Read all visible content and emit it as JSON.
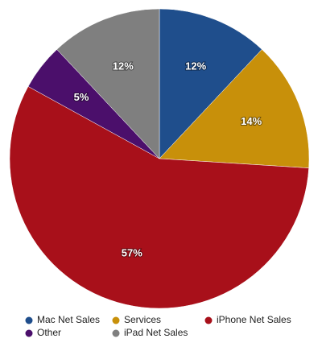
{
  "chart_data": {
    "type": "pie",
    "categories": [
      "Mac Net Sales",
      "Services",
      "iPhone Net Sales",
      "Other",
      "iPad Net Sales"
    ],
    "values": [
      12,
      14,
      57,
      5,
      12
    ],
    "value_labels": [
      "12%",
      "14%",
      "57%",
      "5%",
      "12%"
    ],
    "colors": [
      "#1f4e8c",
      "#c8900a",
      "#a8101a",
      "#4b0f6b",
      "#7f7f7f"
    ],
    "legend": "bottom"
  }
}
